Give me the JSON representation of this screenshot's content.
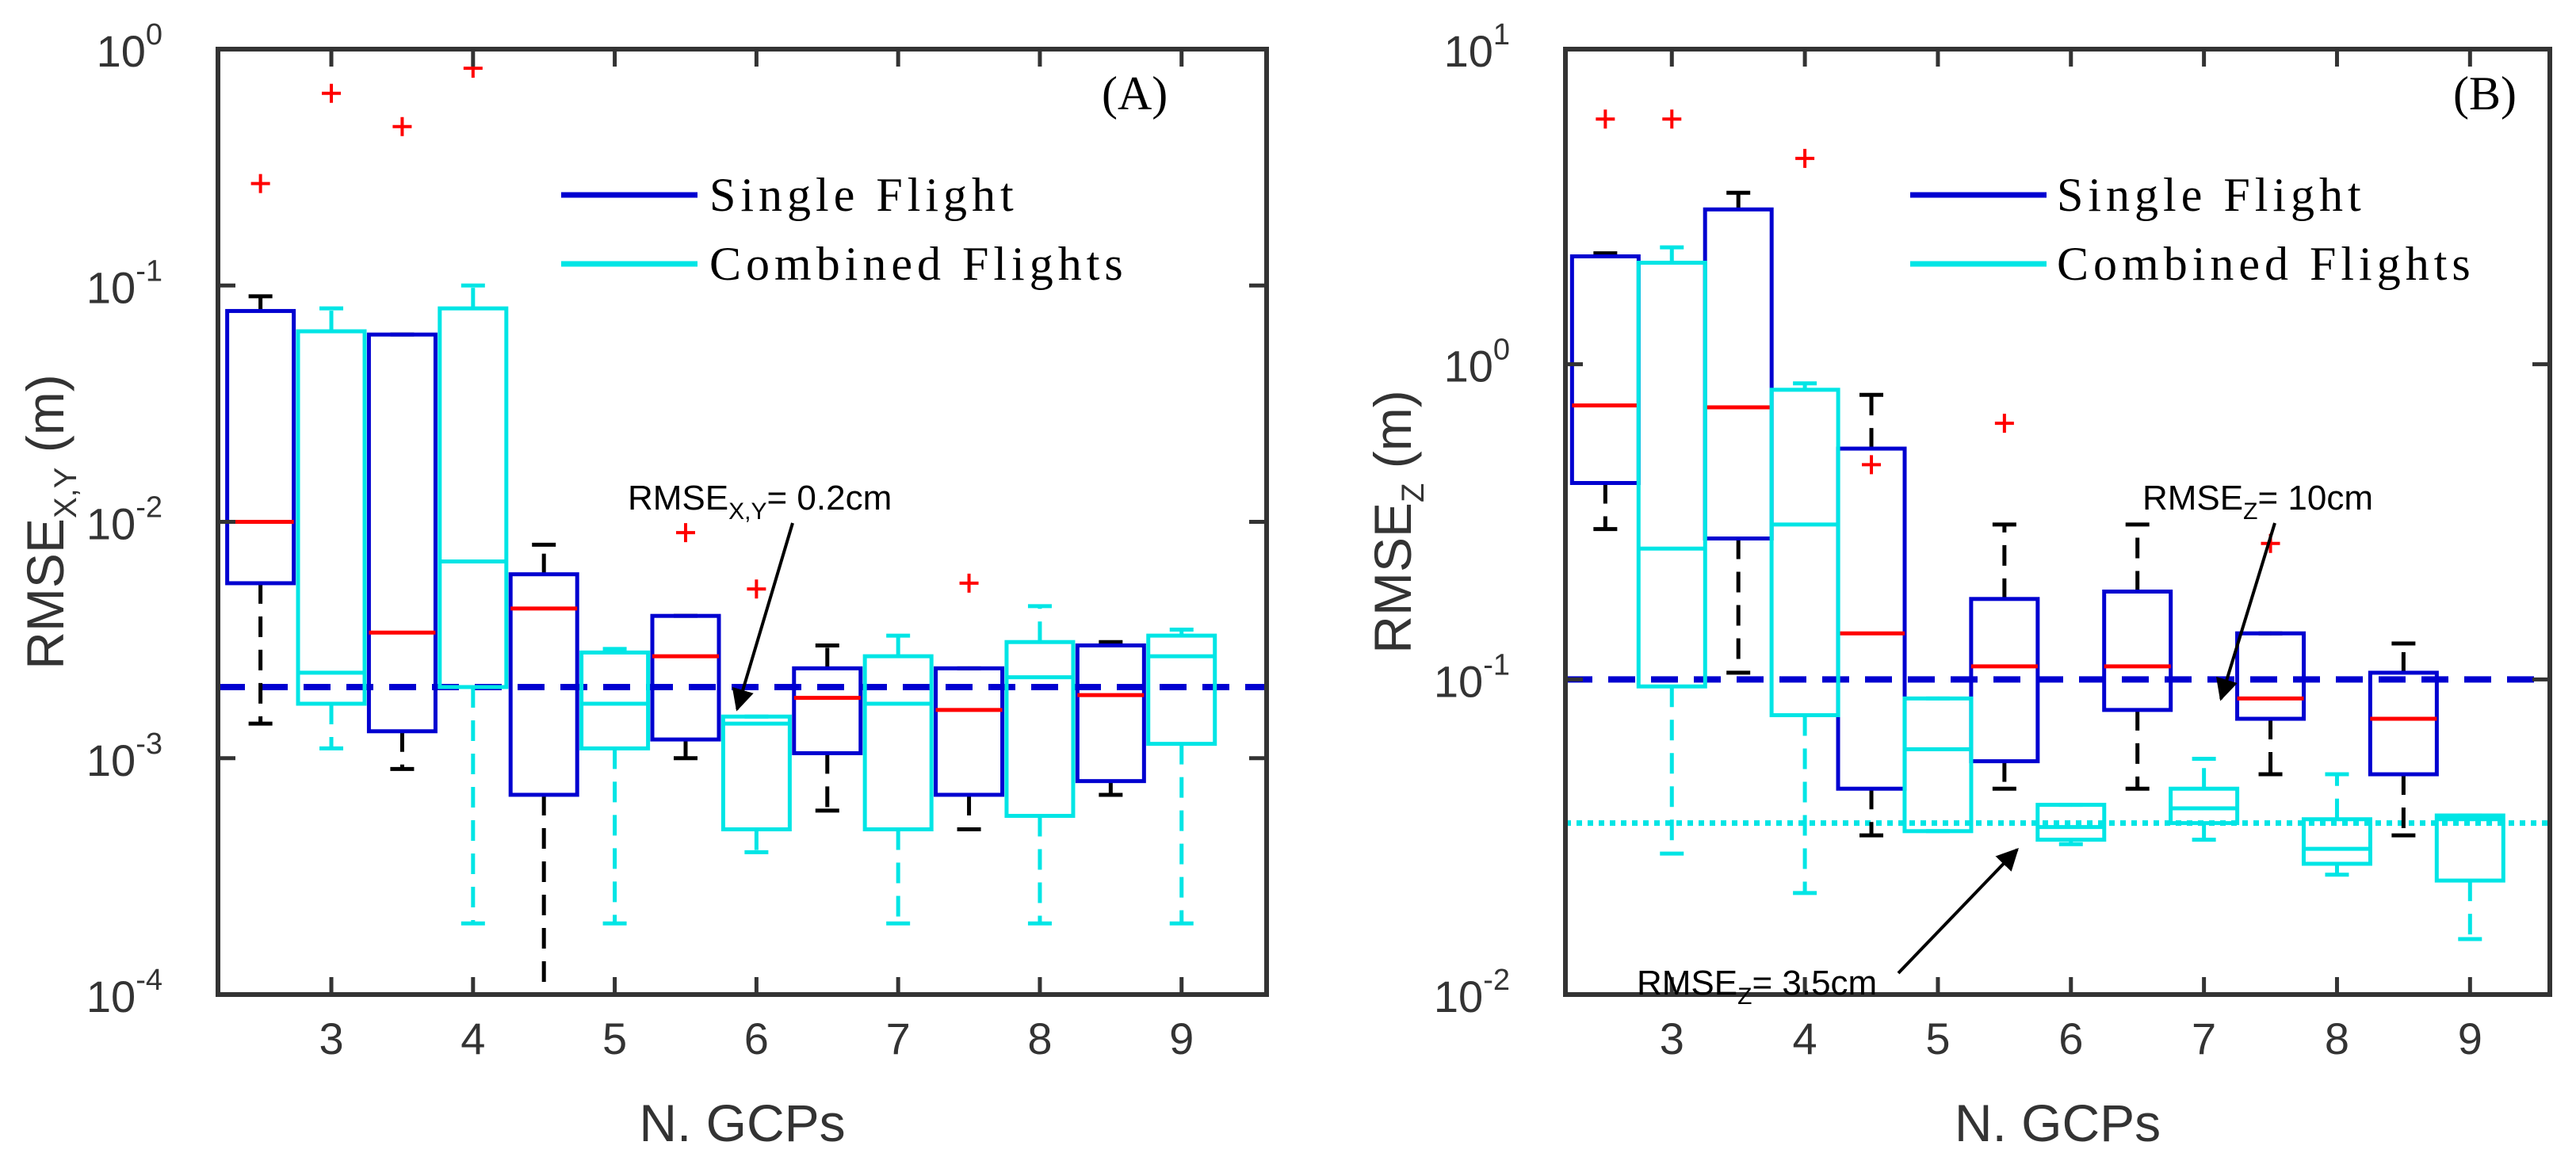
{
  "chart_data": [
    {
      "type": "box",
      "panel_label": "(A)",
      "ylabel": "RMSE",
      "ylabel_sub": "X,Y",
      "ylabel_unit": " (m)",
      "xlabel": "N. GCPs",
      "yscale": "log",
      "ylim": [
        0.0001,
        1
      ],
      "yticks": [
        {
          "base": "10",
          "exp": "-4"
        },
        {
          "base": "10",
          "exp": "-3"
        },
        {
          "base": "10",
          "exp": "-2"
        },
        {
          "base": "10",
          "exp": "-1"
        },
        {
          "base": "10",
          "exp": "0"
        }
      ],
      "xlim": [
        2.2,
        9.6
      ],
      "xticks": [
        "3",
        "4",
        "5",
        "6",
        "7",
        "8",
        "9"
      ],
      "legend": [
        {
          "label": "Single Flight",
          "color": "#0000d0"
        },
        {
          "label": "Combined Flights",
          "color": "#00e5e5"
        }
      ],
      "reference_lines": [
        {
          "series": "Single Flight",
          "value": 0.002,
          "style": "dashed",
          "color": "#0000d0"
        }
      ],
      "annotations": [
        {
          "prefix": "RMSE",
          "sub": "X,Y",
          "suffix": "= 0.2cm",
          "x": 6,
          "y": 0.002
        }
      ],
      "series": [
        {
          "name": "Single Flight",
          "color": "#0000d0",
          "boxes": [
            {
              "x": 2.5,
              "min": 0.0014,
              "q1": 0.0055,
              "median": 0.01,
              "q3": 0.078,
              "max": 0.09,
              "outliers": [
                0.27
              ]
            },
            {
              "x": 3.5,
              "min": 0.0009,
              "q1": 0.0013,
              "median": 0.0034,
              "q3": 0.062,
              "max": 0.062,
              "outliers": [
                0.47
              ]
            },
            {
              "x": 4.5,
              "min": 0.0001,
              "q1": 0.0007,
              "median": 0.0043,
              "q3": 0.006,
              "max": 0.008,
              "outliers": []
            },
            {
              "x": 5.5,
              "min": 0.001,
              "q1": 0.0012,
              "median": 0.0027,
              "q3": 0.004,
              "max": 0.004,
              "outliers": [
                0.009
              ]
            },
            {
              "x": 6.5,
              "min": 0.0006,
              "q1": 0.00105,
              "median": 0.0018,
              "q3": 0.0024,
              "max": 0.003,
              "outliers": []
            },
            {
              "x": 7.5,
              "min": 0.0005,
              "q1": 0.0007,
              "median": 0.0016,
              "q3": 0.0024,
              "max": 0.0024,
              "outliers": [
                0.0055
              ]
            },
            {
              "x": 8.5,
              "min": 0.0007,
              "q1": 0.0008,
              "median": 0.00185,
              "q3": 0.003,
              "max": 0.0031,
              "outliers": []
            }
          ]
        },
        {
          "name": "Combined Flights",
          "color": "#00e5e5",
          "boxes": [
            {
              "x": 3,
              "min": 0.0011,
              "q1": 0.0017,
              "median": 0.0023,
              "q3": 0.064,
              "max": 0.08,
              "outliers": [
                0.65
              ]
            },
            {
              "x": 4,
              "min": 0.0002,
              "q1": 0.002,
              "median": 0.0068,
              "q3": 0.08,
              "max": 0.1,
              "outliers": [
                0.83
              ]
            },
            {
              "x": 5,
              "min": 0.0002,
              "q1": 0.0011,
              "median": 0.0017,
              "q3": 0.0028,
              "max": 0.0029,
              "outliers": []
            },
            {
              "x": 6,
              "min": 0.0004,
              "q1": 0.0005,
              "median": 0.0014,
              "q3": 0.0015,
              "max": 0.0015,
              "outliers": [
                0.0052
              ]
            },
            {
              "x": 7,
              "min": 0.0002,
              "q1": 0.0005,
              "median": 0.0017,
              "q3": 0.0027,
              "max": 0.0033,
              "outliers": []
            },
            {
              "x": 8,
              "min": 0.0002,
              "q1": 0.00057,
              "median": 0.0022,
              "q3": 0.0031,
              "max": 0.0044,
              "outliers": []
            },
            {
              "x": 9,
              "min": 0.0002,
              "q1": 0.00115,
              "median": 0.0027,
              "q3": 0.0033,
              "max": 0.0035,
              "outliers": []
            }
          ]
        }
      ]
    },
    {
      "type": "box",
      "panel_label": "(B)",
      "ylabel": "RMSE",
      "ylabel_sub": "Z",
      "ylabel_unit": " (m)",
      "xlabel": "N. GCPs",
      "yscale": "log",
      "ylim": [
        0.01,
        10
      ],
      "yticks": [
        {
          "base": "10",
          "exp": "-2"
        },
        {
          "base": "10",
          "exp": "-1"
        },
        {
          "base": "10",
          "exp": "0"
        },
        {
          "base": "10",
          "exp": "1"
        }
      ],
      "xlim": [
        2.2,
        9.6
      ],
      "xticks": [
        "3",
        "4",
        "5",
        "6",
        "7",
        "8",
        "9"
      ],
      "legend": [
        {
          "label": "Single Flight",
          "color": "#0000d0"
        },
        {
          "label": "Combined Flights",
          "color": "#00e5e5"
        }
      ],
      "reference_lines": [
        {
          "series": "Single Flight",
          "value": 0.1,
          "style": "dashed",
          "color": "#0000d0"
        },
        {
          "series": "Combined Flights",
          "value": 0.035,
          "style": "dotted",
          "color": "#00e5e5"
        }
      ],
      "annotations": [
        {
          "prefix": "RMSE",
          "sub": "Z",
          "suffix": "= 10cm",
          "x": 7,
          "y": 0.1
        },
        {
          "prefix": "RMSE",
          "sub": "Z",
          "suffix": "= 3.5cm",
          "x": 5.5,
          "y": 0.035
        }
      ],
      "series": [
        {
          "name": "Single Flight",
          "color": "#0000d0",
          "boxes": [
            {
              "x": 2.5,
              "min": 0.3,
              "q1": 0.42,
              "median": 0.74,
              "q3": 2.2,
              "max": 2.25,
              "outliers": [
                6
              ]
            },
            {
              "x": 3.5,
              "min": 0.105,
              "q1": 0.28,
              "median": 0.73,
              "q3": 3.1,
              "max": 3.5,
              "outliers": []
            },
            {
              "x": 4.5,
              "min": 0.032,
              "q1": 0.045,
              "median": 0.14,
              "q3": 0.54,
              "max": 0.8,
              "outliers": [
                0.48
              ]
            },
            {
              "x": 5.5,
              "min": 0.045,
              "q1": 0.055,
              "median": 0.11,
              "q3": 0.18,
              "max": 0.31,
              "outliers": [
                0.65
              ]
            },
            {
              "x": 6.5,
              "min": 0.045,
              "q1": 0.08,
              "median": 0.11,
              "q3": 0.19,
              "max": 0.31,
              "outliers": []
            },
            {
              "x": 7.5,
              "min": 0.05,
              "q1": 0.075,
              "median": 0.087,
              "q3": 0.14,
              "max": 0.14,
              "outliers": [
                0.27
              ]
            },
            {
              "x": 8.5,
              "min": 0.032,
              "q1": 0.05,
              "median": 0.075,
              "q3": 0.105,
              "max": 0.13,
              "outliers": []
            }
          ]
        },
        {
          "name": "Combined Flights",
          "color": "#00e5e5",
          "boxes": [
            {
              "x": 3,
              "min": 0.028,
              "q1": 0.095,
              "median": 0.26,
              "q3": 2.1,
              "max": 2.35,
              "outliers": [
                6
              ]
            },
            {
              "x": 4,
              "min": 0.021,
              "q1": 0.077,
              "median": 0.31,
              "q3": 0.83,
              "max": 0.87,
              "outliers": [
                4.5
              ]
            },
            {
              "x": 5,
              "min": 0.033,
              "q1": 0.033,
              "median": 0.06,
              "q3": 0.087,
              "max": 0.087,
              "outliers": []
            },
            {
              "x": 6,
              "min": 0.03,
              "q1": 0.031,
              "median": 0.034,
              "q3": 0.04,
              "max": 0.04,
              "outliers": []
            },
            {
              "x": 7,
              "min": 0.031,
              "q1": 0.035,
              "median": 0.039,
              "q3": 0.045,
              "max": 0.056,
              "outliers": []
            },
            {
              "x": 8,
              "min": 0.024,
              "q1": 0.026,
              "median": 0.029,
              "q3": 0.036,
              "max": 0.05,
              "outliers": []
            },
            {
              "x": 9,
              "min": 0.015,
              "q1": 0.023,
              "median": 0.036,
              "q3": 0.037,
              "max": 0.037,
              "outliers": []
            }
          ]
        }
      ]
    }
  ]
}
